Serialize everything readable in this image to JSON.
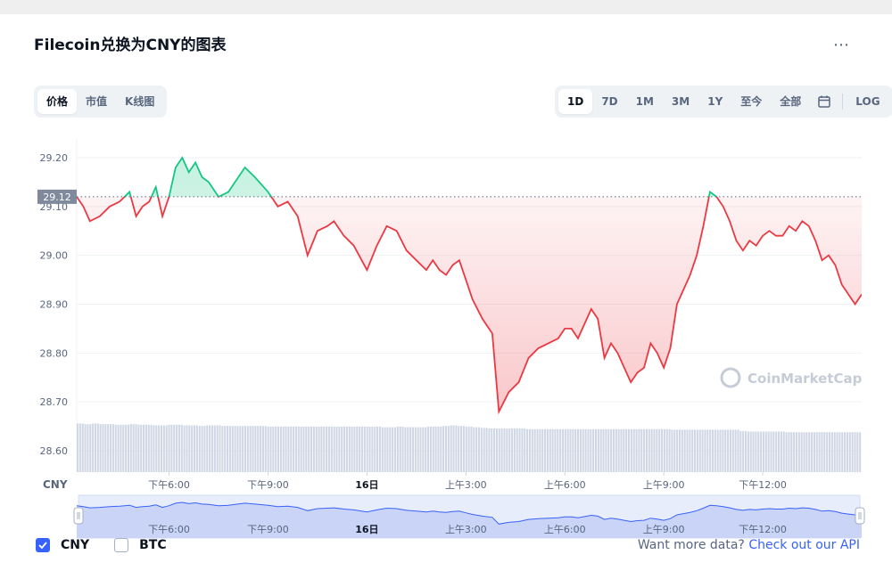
{
  "title": "Filecoin兑换为CNY的图表",
  "menu_icon": "ellipsis-icon",
  "view_tabs": [
    {
      "label": "价格",
      "active": true
    },
    {
      "label": "市值",
      "active": false
    },
    {
      "label": "K线图",
      "active": false
    }
  ],
  "range_tabs": [
    {
      "label": "1D",
      "active": true
    },
    {
      "label": "7D",
      "active": false
    },
    {
      "label": "1M",
      "active": false
    },
    {
      "label": "3M",
      "active": false
    },
    {
      "label": "1Y",
      "active": false
    },
    {
      "label": "至今",
      "active": false
    },
    {
      "label": "全部",
      "active": false
    }
  ],
  "calendar_icon": "calendar-icon",
  "log_label": "LOG",
  "watermark": "CoinMarketCap",
  "currency_label": "CNY",
  "legend": [
    {
      "label": "CNY",
      "checked": true
    },
    {
      "label": "BTC",
      "checked": false
    }
  ],
  "api_text": "Want more data?",
  "api_link": "Check out our API",
  "colors": {
    "up": "#16c784",
    "down": "#ea3943",
    "accent": "#3861fb",
    "volume": "#cfd6e4",
    "current_price_tag": "#808a9d"
  },
  "chart_data": {
    "type": "line",
    "ylim": [
      28.6,
      29.2
    ],
    "y_ticks": [
      "29.20",
      "29.10",
      "29.00",
      "28.90",
      "28.80",
      "28.70",
      "28.60"
    ],
    "x_ticks": [
      "下午6:00",
      "下午9:00",
      "16日",
      "上午3:00",
      "上午6:00",
      "上午9:00",
      "下午12:00"
    ],
    "x_tick_hours": [
      18,
      21,
      24,
      27,
      30,
      33,
      36
    ],
    "x_range_hours": [
      15.2,
      39.0
    ],
    "reference_price": 29.12,
    "current_price_label": "29.12",
    "series": [
      {
        "x": [
          15.2,
          15.4,
          15.6,
          15.9,
          16.2,
          16.5,
          16.8,
          17.0,
          17.2,
          17.4,
          17.6,
          17.8,
          18.0,
          18.2,
          18.4,
          18.6,
          18.8,
          19.0,
          19.2,
          19.5,
          19.8,
          20.0,
          20.3,
          20.6,
          21.0,
          21.3,
          21.6,
          21.9,
          22.2,
          22.5,
          22.8,
          23.0,
          23.3,
          23.6,
          24.0,
          24.3,
          24.6,
          24.9,
          25.2,
          25.5,
          25.8,
          26.0,
          26.2,
          26.4,
          26.6,
          26.8,
          27.0,
          27.2,
          27.5,
          27.8,
          28.0,
          28.3,
          28.6,
          28.9,
          29.2,
          29.5,
          29.8,
          30.0,
          30.2,
          30.4,
          30.6,
          30.8,
          31.0,
          31.2,
          31.4,
          31.6,
          31.8,
          32.0,
          32.2,
          32.4,
          32.6,
          32.8,
          33.0,
          33.2,
          33.4,
          33.6,
          33.8,
          34.0,
          34.2,
          34.4,
          34.6,
          34.8,
          35.0,
          35.2,
          35.4,
          35.6,
          35.8,
          36.0,
          36.2,
          36.4,
          36.6,
          36.8,
          37.0,
          37.2,
          37.4,
          37.6,
          37.8,
          38.0,
          38.2,
          38.4,
          38.6,
          38.8,
          39.0
        ],
        "y": [
          29.12,
          29.1,
          29.07,
          29.08,
          29.1,
          29.11,
          29.13,
          29.08,
          29.1,
          29.11,
          29.14,
          29.08,
          29.12,
          29.18,
          29.2,
          29.17,
          29.19,
          29.16,
          29.15,
          29.12,
          29.13,
          29.15,
          29.18,
          29.16,
          29.13,
          29.1,
          29.11,
          29.08,
          29.0,
          29.05,
          29.06,
          29.07,
          29.04,
          29.02,
          28.97,
          29.02,
          29.06,
          29.05,
          29.01,
          28.99,
          28.97,
          28.99,
          28.97,
          28.96,
          28.98,
          28.99,
          28.95,
          28.91,
          28.87,
          28.84,
          28.68,
          28.72,
          28.74,
          28.79,
          28.81,
          28.82,
          28.83,
          28.85,
          28.85,
          28.83,
          28.86,
          28.89,
          28.87,
          28.79,
          28.82,
          28.8,
          28.77,
          28.74,
          28.76,
          28.77,
          28.82,
          28.8,
          28.77,
          28.81,
          28.9,
          28.93,
          28.96,
          29.0,
          29.06,
          29.13,
          29.12,
          29.1,
          29.07,
          29.03,
          29.01,
          29.03,
          29.02,
          29.04,
          29.05,
          29.04,
          29.04,
          29.06,
          29.05,
          29.07,
          29.06,
          29.03,
          28.99,
          29.0,
          28.98,
          28.94,
          28.92,
          28.9,
          28.92
        ]
      }
    ],
    "volume": [
      0.78,
      0.77,
      0.78,
      0.77,
      0.77,
      0.76,
      0.76,
      0.77,
      0.76,
      0.76,
      0.75,
      0.75,
      0.76,
      0.76,
      0.75,
      0.75,
      0.74,
      0.75,
      0.75,
      0.74,
      0.74,
      0.74,
      0.74,
      0.74,
      0.74,
      0.73,
      0.73,
      0.73,
      0.73,
      0.73,
      0.73,
      0.73,
      0.73,
      0.73,
      0.73,
      0.73,
      0.73,
      0.73,
      0.73,
      0.73,
      0.72,
      0.72,
      0.73,
      0.72,
      0.72,
      0.72,
      0.73,
      0.73,
      0.74,
      0.75,
      0.74,
      0.73,
      0.72,
      0.71,
      0.7,
      0.7,
      0.7,
      0.7,
      0.7,
      0.69,
      0.69,
      0.69,
      0.69,
      0.69,
      0.69,
      0.69,
      0.69,
      0.69,
      0.69,
      0.69,
      0.69,
      0.69,
      0.69,
      0.69,
      0.69,
      0.69,
      0.69,
      0.69,
      0.68,
      0.68,
      0.68,
      0.68,
      0.68,
      0.68,
      0.68,
      0.68,
      0.68,
      0.66,
      0.65,
      0.65,
      0.65,
      0.65,
      0.65,
      0.64,
      0.64,
      0.64,
      0.64,
      0.64,
      0.64,
      0.64,
      0.64,
      0.64,
      0.64
    ],
    "navigator": {
      "x_ticks": [
        "下午6:00",
        "下午9:00",
        "16日",
        "上午3:00",
        "上午6:00",
        "上午9:00",
        "下午12:00"
      ]
    }
  }
}
